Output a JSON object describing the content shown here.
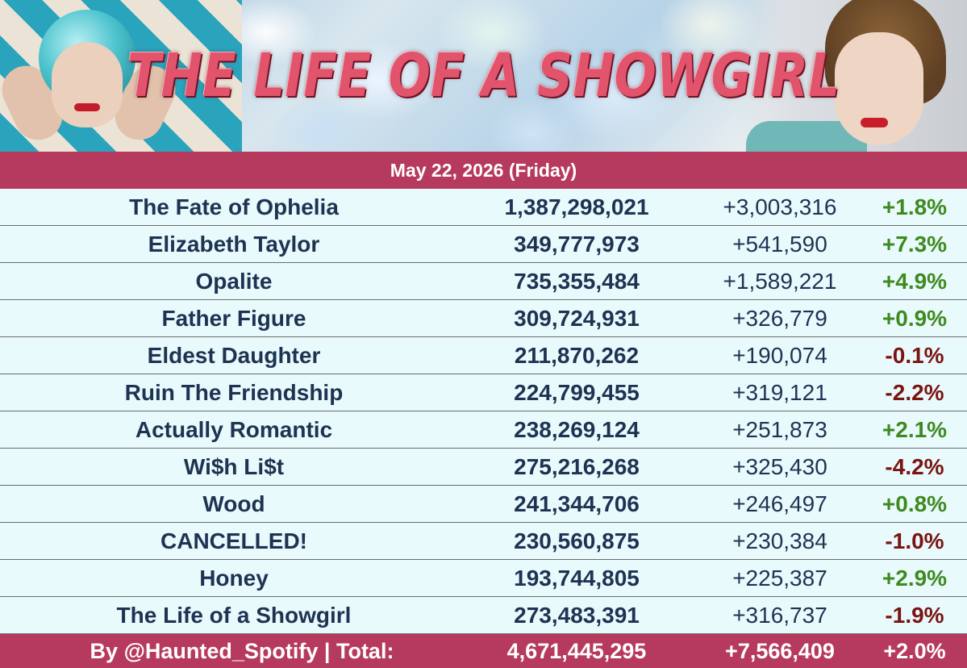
{
  "header": {
    "title": "THE LIFE OF A SHOWGIRL",
    "date": "May 22, 2026 (Friday)"
  },
  "colors": {
    "accent": "#b63a5d",
    "row_background": "#e9fafd",
    "text": "#1e3352",
    "positive": "#3e8a1e",
    "negative": "#7a1410"
  },
  "rows": [
    {
      "song": "The Fate of Ophelia",
      "total": "1,387,298,021",
      "daily": "+3,003,316",
      "change": "+1.8%",
      "trend": "up"
    },
    {
      "song": "Elizabeth Taylor",
      "total": "349,777,973",
      "daily": "+541,590",
      "change": "+7.3%",
      "trend": "up"
    },
    {
      "song": "Opalite",
      "total": "735,355,484",
      "daily": "+1,589,221",
      "change": "+4.9%",
      "trend": "up"
    },
    {
      "song": "Father Figure",
      "total": "309,724,931",
      "daily": "+326,779",
      "change": "+0.9%",
      "trend": "up"
    },
    {
      "song": "Eldest Daughter",
      "total": "211,870,262",
      "daily": "+190,074",
      "change": "-0.1%",
      "trend": "down"
    },
    {
      "song": "Ruin The Friendship",
      "total": "224,799,455",
      "daily": "+319,121",
      "change": "-2.2%",
      "trend": "down"
    },
    {
      "song": "Actually Romantic",
      "total": "238,269,124",
      "daily": "+251,873",
      "change": "+2.1%",
      "trend": "up"
    },
    {
      "song": "Wi$h Li$t",
      "total": "275,216,268",
      "daily": "+325,430",
      "change": "-4.2%",
      "trend": "down"
    },
    {
      "song": "Wood",
      "total": "241,344,706",
      "daily": "+246,497",
      "change": "+0.8%",
      "trend": "up"
    },
    {
      "song": "CANCELLED!",
      "total": "230,560,875",
      "daily": "+230,384",
      "change": "-1.0%",
      "trend": "down"
    },
    {
      "song": "Honey",
      "total": "193,744,805",
      "daily": "+225,387",
      "change": "+2.9%",
      "trend": "up"
    },
    {
      "song": "The Life of a Showgirl",
      "total": "273,483,391",
      "daily": "+316,737",
      "change": "-1.9%",
      "trend": "down"
    }
  ],
  "footer": {
    "credit": "By @Haunted_Spotify | Total:",
    "total": "4,671,445,295",
    "daily": "+7,566,409",
    "change": "+2.0%"
  }
}
